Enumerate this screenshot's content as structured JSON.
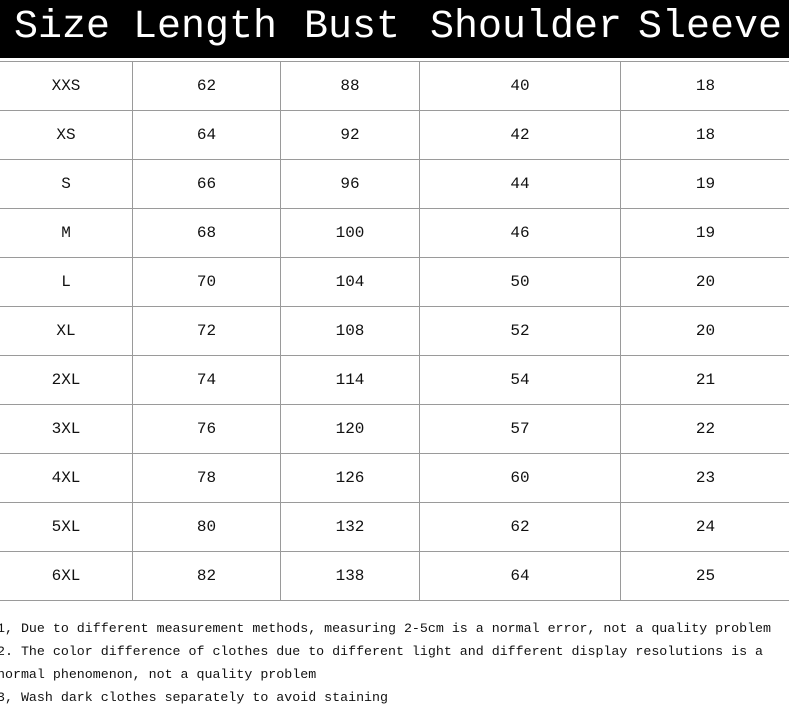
{
  "table": {
    "header": [
      "Size",
      "Length",
      "Bust",
      "Shoulder",
      "Sleeve"
    ],
    "rows": [
      [
        "XXS",
        "62",
        "88",
        "40",
        "18"
      ],
      [
        "XS",
        "64",
        "92",
        "42",
        "18"
      ],
      [
        "S",
        "66",
        "96",
        "44",
        "19"
      ],
      [
        "M",
        "68",
        "100",
        "46",
        "19"
      ],
      [
        "L",
        "70",
        "104",
        "50",
        "20"
      ],
      [
        "XL",
        "72",
        "108",
        "52",
        "20"
      ],
      [
        "2XL",
        "74",
        "114",
        "54",
        "21"
      ],
      [
        "3XL",
        "76",
        "120",
        "57",
        "22"
      ],
      [
        "4XL",
        "78",
        "126",
        "60",
        "23"
      ],
      [
        "5XL",
        "80",
        "132",
        "62",
        "24"
      ],
      [
        "6XL",
        "82",
        "138",
        "64",
        "25"
      ]
    ]
  },
  "notes": [
    "1, Due to different measurement methods, measuring 2-5cm is a normal error, not a quality problem",
    "2. The color difference of clothes due to different light and different display resolutions is a normal phenomenon, not a quality problem",
    "3, Wash dark clothes separately to avoid staining"
  ]
}
